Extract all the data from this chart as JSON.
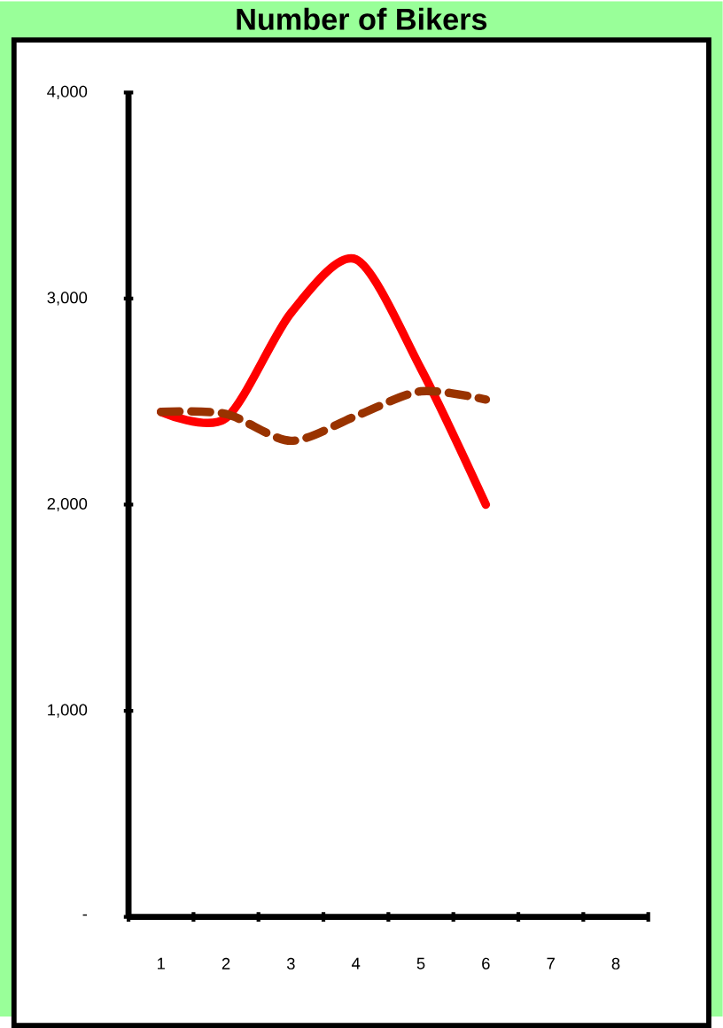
{
  "chart_data": {
    "type": "line",
    "title": "Number of Bikers",
    "categories": [
      "1",
      "2",
      "3",
      "4",
      "5",
      "6",
      "7",
      "8"
    ],
    "series": [
      {
        "color": "#ff0000",
        "line_style": "solid",
        "values": [
          2450,
          2420,
          2930,
          3190,
          2660,
          2000,
          null,
          null
        ]
      },
      {
        "color": "#993300",
        "line_style": "dashed",
        "values": [
          2450,
          2440,
          2310,
          2430,
          2550,
          2510,
          null,
          null
        ]
      }
    ],
    "ylim": [
      0,
      4000
    ],
    "yticks": [
      {
        "value": 0,
        "label": "-"
      },
      {
        "value": 1000,
        "label": "1,000"
      },
      {
        "value": 2000,
        "label": "2,000"
      },
      {
        "value": 3000,
        "label": "3,000"
      },
      {
        "value": 4000,
        "label": "4,000"
      }
    ]
  }
}
